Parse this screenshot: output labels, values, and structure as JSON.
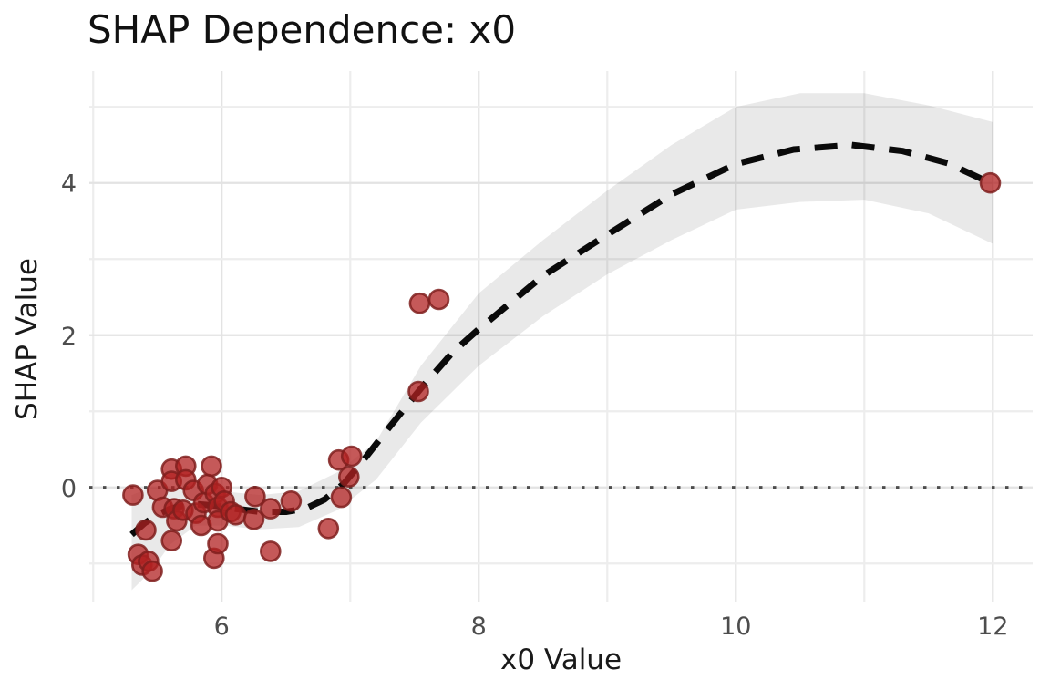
{
  "figure": {
    "background": "#ffffff"
  },
  "chart_data": {
    "type": "scatter",
    "title": "SHAP Dependence: x0",
    "xlabel": "x0 Value",
    "ylabel": "SHAP Value",
    "xlim": [
      4.97,
      12.31
    ],
    "ylim": [
      -1.44,
      5.47
    ],
    "x_major_ticks": [
      6,
      8,
      10,
      12
    ],
    "y_major_ticks": [
      0,
      2,
      4
    ],
    "x_gridlines": [
      5,
      6,
      7,
      8,
      9,
      10,
      11,
      12
    ],
    "y_gridlines": [
      -1,
      0,
      1,
      2,
      3,
      4,
      5
    ],
    "grid": true,
    "legend_position": "none",
    "zero_line_y": 0,
    "scatter_points": [
      [
        5.31,
        -0.1
      ],
      [
        5.35,
        -0.88
      ],
      [
        5.38,
        -1.02
      ],
      [
        5.41,
        -0.56
      ],
      [
        5.43,
        -0.97
      ],
      [
        5.46,
        -1.1
      ],
      [
        5.5,
        -0.04
      ],
      [
        5.54,
        -0.26
      ],
      [
        5.61,
        0.24
      ],
      [
        5.61,
        0.08
      ],
      [
        5.61,
        -0.7
      ],
      [
        5.63,
        -0.28
      ],
      [
        5.65,
        -0.44
      ],
      [
        5.7,
        -0.3
      ],
      [
        5.72,
        0.28
      ],
      [
        5.72,
        0.1
      ],
      [
        5.78,
        -0.04
      ],
      [
        5.8,
        -0.34
      ],
      [
        5.84,
        -0.5
      ],
      [
        5.86,
        -0.2
      ],
      [
        5.89,
        0.04
      ],
      [
        5.92,
        0.28
      ],
      [
        5.94,
        -0.93
      ],
      [
        5.95,
        -0.08
      ],
      [
        5.97,
        -0.26
      ],
      [
        5.97,
        -0.44
      ],
      [
        5.97,
        -0.74
      ],
      [
        6.0,
        0.0
      ],
      [
        6.02,
        -0.18
      ],
      [
        6.07,
        -0.32
      ],
      [
        6.11,
        -0.36
      ],
      [
        6.25,
        -0.42
      ],
      [
        6.26,
        -0.12
      ],
      [
        6.38,
        -0.28
      ],
      [
        6.38,
        -0.84
      ],
      [
        6.54,
        -0.18
      ],
      [
        6.83,
        -0.54
      ],
      [
        6.91,
        0.36
      ],
      [
        6.93,
        -0.13
      ],
      [
        6.99,
        0.14
      ],
      [
        7.01,
        0.41
      ],
      [
        7.53,
        1.26
      ],
      [
        7.54,
        2.42
      ],
      [
        7.69,
        2.47
      ],
      [
        11.98,
        4.0
      ]
    ],
    "smooth_line": [
      [
        5.3,
        -0.62
      ],
      [
        5.4,
        -0.47
      ],
      [
        5.5,
        -0.36
      ],
      [
        5.6,
        -0.28
      ],
      [
        5.7,
        -0.24
      ],
      [
        5.8,
        -0.22
      ],
      [
        5.95,
        -0.24
      ],
      [
        6.1,
        -0.28
      ],
      [
        6.3,
        -0.32
      ],
      [
        6.5,
        -0.32
      ],
      [
        6.65,
        -0.28
      ],
      [
        6.8,
        -0.16
      ],
      [
        6.95,
        0.05
      ],
      [
        7.1,
        0.35
      ],
      [
        7.3,
        0.78
      ],
      [
        7.55,
        1.3
      ],
      [
        7.8,
        1.78
      ],
      [
        8.0,
        2.08
      ],
      [
        8.5,
        2.78
      ],
      [
        9.0,
        3.32
      ],
      [
        9.5,
        3.85
      ],
      [
        10.0,
        4.25
      ],
      [
        10.45,
        4.44
      ],
      [
        10.9,
        4.5
      ],
      [
        11.3,
        4.42
      ],
      [
        11.65,
        4.26
      ],
      [
        11.98,
        4.0
      ]
    ],
    "confidence_band": {
      "x": [
        5.3,
        5.45,
        5.6,
        5.8,
        6.0,
        6.3,
        6.6,
        6.9,
        7.2,
        7.55,
        8.0,
        8.5,
        9.0,
        9.5,
        10.0,
        10.5,
        11.0,
        11.5,
        12.0
      ],
      "upper": [
        -0.1,
        0.0,
        0.0,
        -0.02,
        -0.05,
        -0.1,
        -0.05,
        0.2,
        0.6,
        1.6,
        2.55,
        3.25,
        3.9,
        4.5,
        5.0,
        5.18,
        5.18,
        5.02,
        4.8
      ],
      "lower": [
        -1.35,
        -1.1,
        -0.75,
        -0.5,
        -0.5,
        -0.55,
        -0.52,
        -0.3,
        0.1,
        0.85,
        1.6,
        2.25,
        2.8,
        3.25,
        3.65,
        3.75,
        3.78,
        3.6,
        3.2
      ]
    },
    "colors": {
      "point_fill": "#b22222",
      "point_edge": "#7f1f1d",
      "smooth_line": "#0a0a0a",
      "band_fill": "#000000",
      "band_opacity": 0.085,
      "zero_line": "#4d4d4d",
      "grid_major": "#e3e3e3",
      "grid_minor": "#ededed",
      "tick_label": "#4d4d4d",
      "title_text": "#111111",
      "axis_title_text": "#1a1a1a"
    }
  }
}
